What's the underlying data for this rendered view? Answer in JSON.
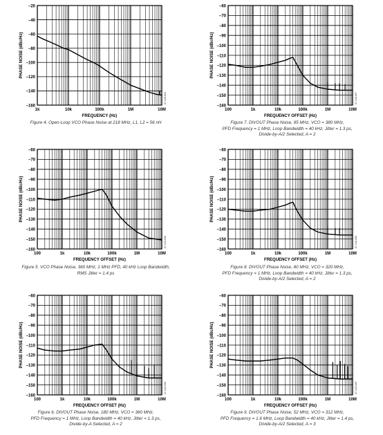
{
  "colors": {
    "grid": "#000000",
    "trace": "#000000",
    "caption": "#333333"
  },
  "chart_data": [
    {
      "type": "line",
      "id": "fig4",
      "ylabel": "PHASE NOISE (dBc/Hz)",
      "xlabel": "FREQUENCY (Hz)",
      "xscale": "log",
      "xlim": [
        1000,
        10000000
      ],
      "ylim": [
        -160,
        -20
      ],
      "xticks": [
        "1k",
        "10k",
        "100k",
        "1M",
        "10M"
      ],
      "yticks": [
        "–20",
        "–40",
        "–60",
        "–80",
        "–100",
        "–120",
        "–140",
        "–160"
      ],
      "code": "07 126-004",
      "caption": [
        "Figure 4. Open-Loop VCO Phase Noise at 218 MHz, L1, L2 = 56 nH"
      ],
      "series": [
        {
          "x": [
            1000,
            1500,
            2500,
            4000,
            7000,
            10000,
            20000,
            40000,
            70000,
            100000,
            200000,
            400000,
            700000,
            1000000,
            2000000,
            4000000,
            7000000,
            10000000
          ],
          "y": [
            -63,
            -67,
            -71,
            -75,
            -80,
            -82,
            -89,
            -96,
            -101,
            -105,
            -114,
            -122,
            -128,
            -132,
            -137,
            -142,
            -145,
            -146
          ]
        }
      ],
      "spurs": [
        {
          "x": 8500000,
          "y": -140
        }
      ]
    },
    {
      "type": "line",
      "id": "fig7",
      "ylabel": "PHASE NOISE (dBc/Hz)",
      "xlabel": "FREQUENCY OFFSET (Hz)",
      "xscale": "log",
      "xlim": [
        100,
        10000000
      ],
      "ylim": [
        -160,
        -60
      ],
      "xticks": [
        "100",
        "1k",
        "10k",
        "100k",
        "1M",
        "10M"
      ],
      "yticks": [
        "–60",
        "–70",
        "–80",
        "–90",
        "–100",
        "–110",
        "–120",
        "–130",
        "–140",
        "–150",
        "–160"
      ],
      "code": "07 126-007",
      "caption": [
        "Figure 7. DIVOUT Phase Noise, 95 MHz, VCO = 380 MHz,",
        "PFD Frequency = 1 MHz, Loop Bandwidth = 40 kHz, Jitter = 1.3 ps,",
        "Divide-by-A/2 Selected, A = 2"
      ],
      "series": [
        {
          "x": [
            100,
            200,
            500,
            1000,
            2000,
            5000,
            10000,
            20000,
            30000,
            40000,
            60000,
            100000,
            200000,
            400000,
            1000000,
            3000000,
            10000000
          ],
          "y": [
            -119,
            -120,
            -122,
            -122,
            -121,
            -119,
            -117,
            -115,
            -113,
            -112,
            -120,
            -130,
            -138,
            -142,
            -144,
            -145,
            -145
          ]
        }
      ],
      "spurs": [
        {
          "x": 1000000,
          "y": -137
        },
        {
          "x": 2000000,
          "y": -138
        },
        {
          "x": 3000000,
          "y": -138
        },
        {
          "x": 5000000,
          "y": -139
        }
      ]
    },
    {
      "type": "line",
      "id": "fig5",
      "ylabel": "PHASE NOISE (dBc/Hz)",
      "xlabel": "FREQUENCY OFFSET (Hz)",
      "xscale": "log",
      "xlim": [
        100,
        10000000
      ],
      "ylim": [
        -160,
        -60
      ],
      "xticks": [
        "100",
        "1k",
        "10k",
        "100k",
        "1M",
        "10M"
      ],
      "yticks": [
        "–60",
        "–70",
        "–80",
        "–90",
        "–100",
        "–110",
        "–120",
        "–130",
        "–140",
        "–150",
        "–160"
      ],
      "code": "07 126-005",
      "caption": [
        "Figure 5. VCO Phase Noise, 360 MHz, 1 MHz PFD, 40 kHz Loop Bandwidth,",
        "RMS Jitter = 1.4 ps"
      ],
      "series": [
        {
          "x": [
            100,
            200,
            500,
            1000,
            2000,
            5000,
            10000,
            20000,
            40000,
            60000,
            100000,
            200000,
            400000,
            1000000,
            3000000,
            10000000
          ],
          "y": [
            -109,
            -110,
            -111,
            -110,
            -108,
            -106,
            -104,
            -102,
            -100,
            -106,
            -117,
            -127,
            -135,
            -143,
            -149,
            -151
          ]
        }
      ],
      "spurs": []
    },
    {
      "type": "line",
      "id": "fig8",
      "ylabel": "PHASE NOISE (dBc/Hz)",
      "xlabel": "FREQUENCY OFFSET (Hz)",
      "xscale": "log",
      "xlim": [
        100,
        10000000
      ],
      "ylim": [
        -160,
        -60
      ],
      "xticks": [
        "100",
        "1k",
        "10k",
        "100k",
        "1M",
        "10M"
      ],
      "yticks": [
        "–60",
        "–70",
        "–80",
        "–90",
        "–100",
        "–110",
        "–120",
        "–130",
        "–140",
        "–150",
        "–160"
      ],
      "code": "07 126-008",
      "caption": [
        "Figure 8. DIVOUT Phase Noise, 80 MHz, VCO = 320 MHz,",
        "PFD Frequency = 1 MHz, Loop Bandwidth = 40 kHz, Jitter = 1.3 ps,",
        "Divide-by-A/2 Selected, A = 2"
      ],
      "series": [
        {
          "x": [
            100,
            200,
            500,
            1000,
            2000,
            5000,
            10000,
            20000,
            30000,
            40000,
            60000,
            100000,
            200000,
            400000,
            1000000,
            3000000,
            10000000
          ],
          "y": [
            -120,
            -121,
            -122,
            -122,
            -121,
            -120,
            -118,
            -116,
            -114,
            -113,
            -122,
            -131,
            -139,
            -143,
            -145,
            -146,
            -146
          ]
        }
      ],
      "spurs": [
        {
          "x": 1000000,
          "y": -138
        },
        {
          "x": 2000000,
          "y": -139
        },
        {
          "x": 3000000,
          "y": -139
        }
      ]
    },
    {
      "type": "line",
      "id": "fig6",
      "ylabel": "PHASE NOISE (dBc/Hz)",
      "xlabel": "FREQUENCY OFFSET (Hz)",
      "xscale": "log",
      "xlim": [
        100,
        10000000
      ],
      "ylim": [
        -160,
        -60
      ],
      "xticks": [
        "100",
        "1k",
        "10k",
        "100k",
        "1M",
        "10M"
      ],
      "yticks": [
        "–60",
        "–70",
        "–80",
        "–90",
        "–100",
        "–110",
        "–120",
        "–130",
        "–140",
        "–150",
        "–160"
      ],
      "code": "07 126-006",
      "caption": [
        "Figure 6. DIVOUT Phase Noise, 180 MHz, VCO = 360 MHz,",
        "PFD Frequency = 1 MHz, Loop Bandwidth = 40 kHz, Jitter = 1.3 ps,",
        "Divide-by-A Selected, A = 2"
      ],
      "series": [
        {
          "x": [
            100,
            200,
            500,
            1000,
            2000,
            5000,
            10000,
            20000,
            40000,
            60000,
            100000,
            200000,
            400000,
            1000000,
            3000000,
            10000000
          ],
          "y": [
            -113,
            -115,
            -116,
            -116,
            -115,
            -114,
            -112,
            -110,
            -109,
            -115,
            -124,
            -132,
            -137,
            -141,
            -143,
            -143
          ]
        }
      ],
      "spurs": [
        {
          "x": 600000,
          "y": -125
        },
        {
          "x": 1000000,
          "y": -128
        },
        {
          "x": 2000000,
          "y": -131
        },
        {
          "x": 3000000,
          "y": -133
        },
        {
          "x": 5000000,
          "y": -130
        }
      ]
    },
    {
      "type": "line",
      "id": "fig9",
      "ylabel": "PHASE NOISE (dBc/Hz)",
      "xlabel": "FREQUENCY OFFSET (Hz)",
      "xscale": "log",
      "xlim": [
        100,
        10000000
      ],
      "ylim": [
        -160,
        -60
      ],
      "xticks": [
        "100",
        "1k",
        "10k",
        "100k",
        "1M",
        "10M"
      ],
      "yticks": [
        "–60",
        "–70",
        "–80",
        "–90",
        "–100",
        "–110",
        "–120",
        "–130",
        "–140",
        "–150",
        "–160"
      ],
      "code": "07 126-009",
      "caption": [
        "Figure 9. DIVOUT Phase Noise, 52 MHz, VCO = 312 MHz,",
        "PFD Frequency = 1.6 MHz, Loop Bandwidth = 40 kHz, Jitter = 1.4 ps,",
        "Divide-by-A/2 Selected, A = 3"
      ],
      "series": [
        {
          "x": [
            100,
            200,
            500,
            1000,
            2000,
            5000,
            10000,
            20000,
            40000,
            60000,
            100000,
            200000,
            400000,
            1000000,
            3000000,
            10000000
          ],
          "y": [
            -124,
            -125,
            -126,
            -126,
            -126,
            -125,
            -124,
            -123,
            -123,
            -125,
            -129,
            -135,
            -140,
            -143,
            -144,
            -144
          ]
        }
      ],
      "spurs": [
        {
          "x": 1600000,
          "y": -127
        },
        {
          "x": 2400000,
          "y": -130
        },
        {
          "x": 3200000,
          "y": -126
        },
        {
          "x": 4800000,
          "y": -129
        },
        {
          "x": 6400000,
          "y": -131
        }
      ]
    }
  ]
}
